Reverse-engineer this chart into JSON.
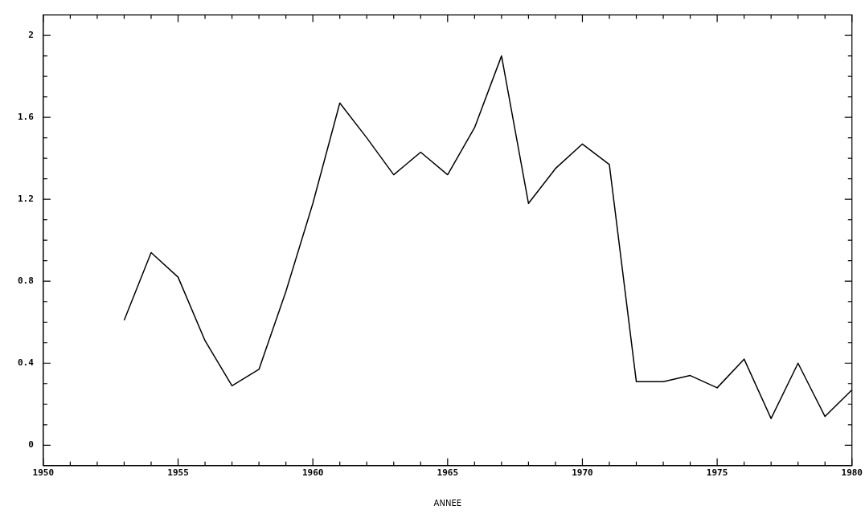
{
  "chart_data": {
    "type": "line",
    "xlabel": "ANNEE",
    "x": [
      1953,
      1954,
      1955,
      1956,
      1957,
      1958,
      1959,
      1960,
      1961,
      1962,
      1963,
      1964,
      1965,
      1966,
      1967,
      1968,
      1969,
      1970,
      1971,
      1972,
      1973,
      1974,
      1975,
      1976,
      1977,
      1978,
      1979,
      1980
    ],
    "series": [
      {
        "color": "#000000",
        "values": [
          0.61,
          0.94,
          0.82,
          0.51,
          0.29,
          0.37,
          0.75,
          1.18,
          1.67,
          1.5,
          1.32,
          1.43,
          1.32,
          1.55,
          1.9,
          1.18,
          1.35,
          1.47,
          1.37,
          0.31,
          0.31,
          0.34,
          0.28,
          0.42,
          0.13,
          0.4,
          0.14,
          0.27
        ]
      }
    ],
    "xlim": [
      1950,
      1980
    ],
    "xticks": [
      1950,
      {
        "value": 1951,
        "label": null
      },
      {
        "value": 1952,
        "label": null
      },
      {
        "value": 1953,
        "label": null
      },
      {
        "value": 1954,
        "label": null
      },
      1955,
      {
        "value": 1956,
        "label": null
      },
      {
        "value": 1957,
        "label": null
      },
      {
        "value": 1958,
        "label": null
      },
      {
        "value": 1959,
        "label": null
      },
      1960,
      {
        "value": 1961,
        "label": null
      },
      {
        "value": 1962,
        "label": null
      },
      {
        "value": 1963,
        "label": null
      },
      {
        "value": 1964,
        "label": null
      },
      1965,
      {
        "value": 1966,
        "label": null
      },
      {
        "value": 1967,
        "label": null
      },
      {
        "value": 1968,
        "label": null
      },
      {
        "value": 1969,
        "label": null
      },
      1970,
      {
        "value": 1971,
        "label": null
      },
      {
        "value": 1972,
        "label": null
      },
      {
        "value": 1973,
        "label": null
      },
      {
        "value": 1974,
        "label": null
      },
      1975,
      {
        "value": 1976,
        "label": null
      },
      {
        "value": 1977,
        "label": null
      },
      {
        "value": 1978,
        "label": null
      },
      {
        "value": 1979,
        "label": null
      },
      1980
    ],
    "ylim": [
      -0.1,
      2.1
    ],
    "yticks": [
      0,
      {
        "value": 0.1,
        "label": null
      },
      {
        "value": 0.2,
        "label": null
      },
      {
        "value": 0.3,
        "label": null
      },
      0.4,
      {
        "value": 0.5,
        "label": null
      },
      {
        "value": 0.6,
        "label": null
      },
      {
        "value": 0.7,
        "label": null
      },
      0.8,
      {
        "value": 0.9,
        "label": null
      },
      {
        "value": 1.0,
        "label": null
      },
      {
        "value": 1.1,
        "label": null
      },
      1.2,
      {
        "value": 1.3,
        "label": null
      },
      {
        "value": 1.4,
        "label": null
      },
      {
        "value": 1.5,
        "label": null
      },
      1.6,
      {
        "value": 1.7,
        "label": null
      },
      {
        "value": 1.8,
        "label": null
      },
      {
        "value": 1.9,
        "label": null
      },
      2
    ],
    "grid": false,
    "legend": false,
    "marker": "none",
    "line_style": "solid"
  }
}
